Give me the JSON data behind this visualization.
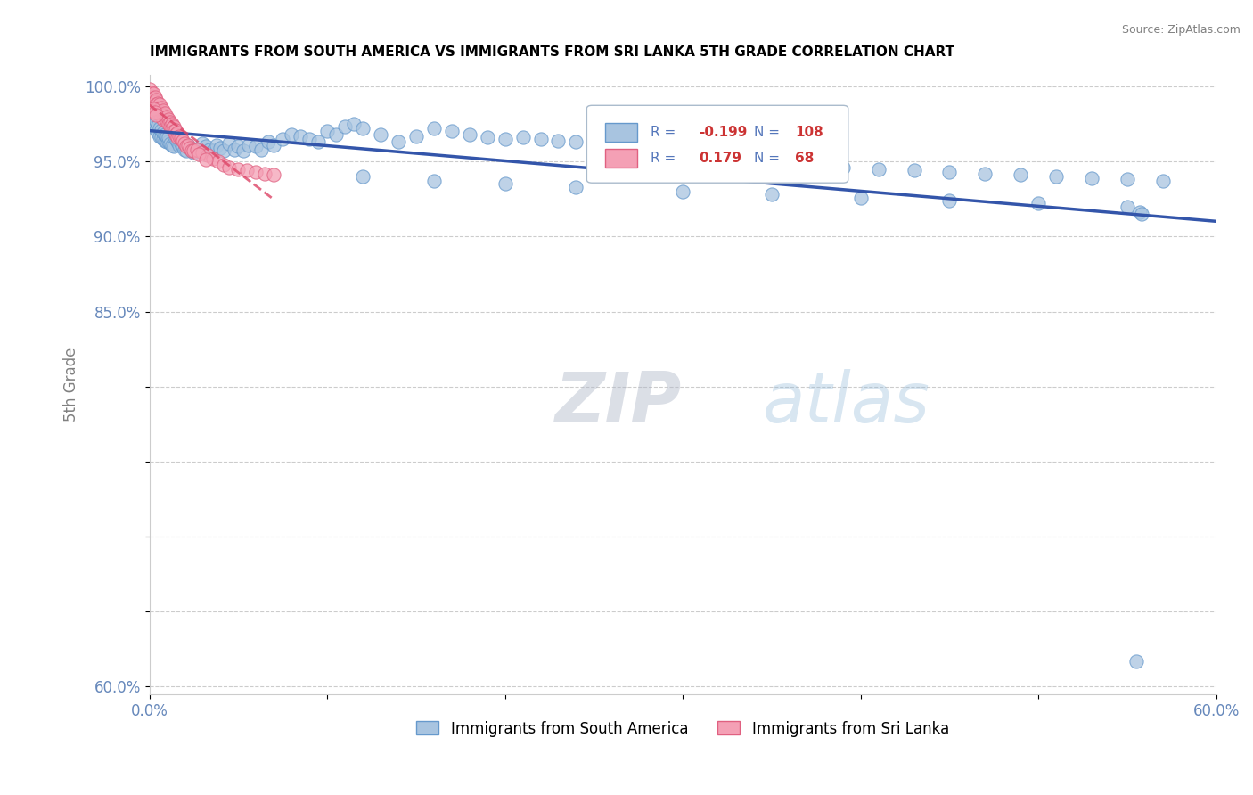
{
  "title": "IMMIGRANTS FROM SOUTH AMERICA VS IMMIGRANTS FROM SRI LANKA 5TH GRADE CORRELATION CHART",
  "source": "Source: ZipAtlas.com",
  "ylabel": "5th Grade",
  "R_blue": -0.199,
  "N_blue": 108,
  "R_pink": 0.179,
  "N_pink": 68,
  "blue_fill": "#a8c4e0",
  "blue_edge": "#6699cc",
  "pink_fill": "#f4a0b5",
  "pink_edge": "#e06080",
  "blue_line": "#3355aa",
  "pink_line": "#dd4466",
  "legend_label_blue": "Immigrants from South America",
  "legend_label_pink": "Immigrants from Sri Lanka",
  "watermark_color": "#c8d8e8",
  "grid_color": "#cccccc",
  "tick_color": "#6688bb",
  "xlim": [
    0.0,
    0.6
  ],
  "ylim": [
    0.595,
    1.008
  ],
  "blue_x": [
    0.001,
    0.002,
    0.003,
    0.003,
    0.004,
    0.004,
    0.005,
    0.005,
    0.006,
    0.006,
    0.007,
    0.007,
    0.008,
    0.008,
    0.009,
    0.009,
    0.01,
    0.01,
    0.011,
    0.011,
    0.012,
    0.013,
    0.014,
    0.015,
    0.016,
    0.017,
    0.018,
    0.019,
    0.02,
    0.021,
    0.022,
    0.023,
    0.024,
    0.025,
    0.027,
    0.028,
    0.03,
    0.032,
    0.034,
    0.036,
    0.038,
    0.04,
    0.042,
    0.045,
    0.048,
    0.05,
    0.053,
    0.056,
    0.06,
    0.063,
    0.067,
    0.07,
    0.075,
    0.08,
    0.085,
    0.09,
    0.095,
    0.1,
    0.105,
    0.11,
    0.115,
    0.12,
    0.13,
    0.14,
    0.15,
    0.16,
    0.17,
    0.18,
    0.19,
    0.2,
    0.21,
    0.22,
    0.23,
    0.24,
    0.25,
    0.26,
    0.27,
    0.28,
    0.29,
    0.3,
    0.31,
    0.32,
    0.33,
    0.34,
    0.35,
    0.37,
    0.39,
    0.41,
    0.43,
    0.45,
    0.47,
    0.49,
    0.51,
    0.53,
    0.55,
    0.57,
    0.12,
    0.16,
    0.2,
    0.24,
    0.3,
    0.35,
    0.4,
    0.45,
    0.5,
    0.55,
    0.557,
    0.558
  ],
  "blue_y": [
    0.98,
    0.978,
    0.975,
    0.973,
    0.971,
    0.977,
    0.969,
    0.974,
    0.967,
    0.972,
    0.966,
    0.971,
    0.965,
    0.969,
    0.964,
    0.968,
    0.963,
    0.967,
    0.963,
    0.966,
    0.962,
    0.961,
    0.96,
    0.965,
    0.963,
    0.961,
    0.962,
    0.96,
    0.958,
    0.957,
    0.961,
    0.959,
    0.957,
    0.956,
    0.958,
    0.957,
    0.962,
    0.96,
    0.958,
    0.957,
    0.961,
    0.959,
    0.957,
    0.962,
    0.958,
    0.96,
    0.957,
    0.961,
    0.96,
    0.958,
    0.963,
    0.961,
    0.965,
    0.968,
    0.967,
    0.965,
    0.963,
    0.97,
    0.968,
    0.973,
    0.975,
    0.972,
    0.968,
    0.963,
    0.967,
    0.972,
    0.97,
    0.968,
    0.966,
    0.965,
    0.966,
    0.965,
    0.964,
    0.963,
    0.962,
    0.96,
    0.958,
    0.956,
    0.954,
    0.955,
    0.953,
    0.952,
    0.951,
    0.95,
    0.948,
    0.947,
    0.946,
    0.945,
    0.944,
    0.943,
    0.942,
    0.941,
    0.94,
    0.939,
    0.938,
    0.937,
    0.94,
    0.937,
    0.935,
    0.933,
    0.93,
    0.928,
    0.926,
    0.924,
    0.922,
    0.92,
    0.916,
    0.915
  ],
  "pink_x": [
    0.0,
    0.0,
    0.001,
    0.001,
    0.001,
    0.002,
    0.002,
    0.002,
    0.003,
    0.003,
    0.003,
    0.004,
    0.004,
    0.004,
    0.005,
    0.005,
    0.005,
    0.006,
    0.006,
    0.006,
    0.007,
    0.007,
    0.007,
    0.008,
    0.008,
    0.008,
    0.009,
    0.009,
    0.01,
    0.01,
    0.011,
    0.011,
    0.012,
    0.012,
    0.013,
    0.013,
    0.014,
    0.014,
    0.015,
    0.015,
    0.016,
    0.016,
    0.017,
    0.018,
    0.019,
    0.02,
    0.021,
    0.022,
    0.023,
    0.024,
    0.025,
    0.027,
    0.03,
    0.033,
    0.036,
    0.039,
    0.042,
    0.045,
    0.05,
    0.055,
    0.06,
    0.065,
    0.07,
    0.028,
    0.032,
    0.002,
    0.003,
    0.004
  ],
  "pink_y": [
    0.998,
    0.994,
    0.996,
    0.993,
    0.991,
    0.995,
    0.992,
    0.989,
    0.993,
    0.99,
    0.987,
    0.991,
    0.988,
    0.985,
    0.989,
    0.986,
    0.983,
    0.988,
    0.985,
    0.982,
    0.986,
    0.983,
    0.98,
    0.984,
    0.981,
    0.978,
    0.982,
    0.979,
    0.98,
    0.977,
    0.978,
    0.975,
    0.976,
    0.973,
    0.975,
    0.972,
    0.973,
    0.97,
    0.971,
    0.968,
    0.969,
    0.966,
    0.967,
    0.966,
    0.964,
    0.962,
    0.96,
    0.961,
    0.959,
    0.957,
    0.957,
    0.958,
    0.956,
    0.954,
    0.952,
    0.95,
    0.948,
    0.946,
    0.945,
    0.944,
    0.943,
    0.942,
    0.941,
    0.955,
    0.951,
    0.985,
    0.983,
    0.981
  ],
  "outlier_blue_x": [
    0.555
  ],
  "outlier_blue_y": [
    0.617
  ],
  "scatter_s": 120
}
